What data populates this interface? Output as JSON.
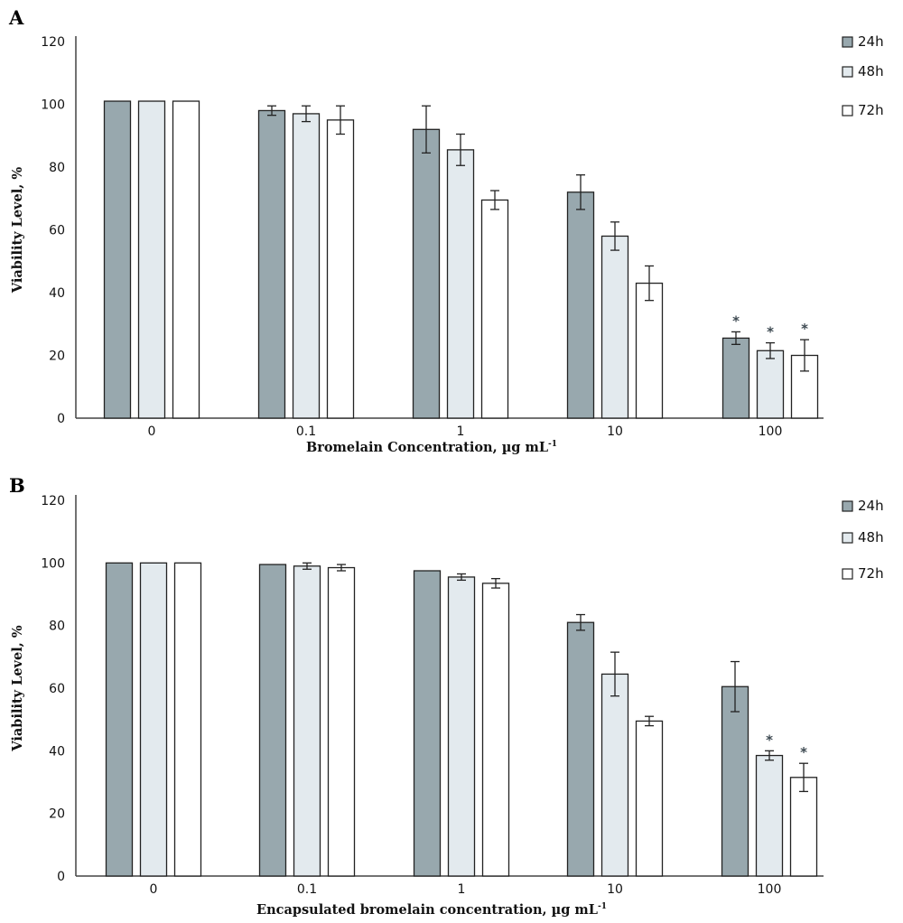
{
  "series_colors": [
    "#98a8ae",
    "#e3eaee",
    "#ffffff"
  ],
  "chart_data": [
    {
      "panel": "A",
      "type": "bar",
      "categories": [
        "0",
        "0.1",
        "1",
        "10",
        "100"
      ],
      "series": [
        {
          "name": "24h",
          "values": [
            101,
            98,
            92,
            72,
            25.5
          ],
          "errors": [
            0,
            1.5,
            7.5,
            5.5,
            2
          ]
        },
        {
          "name": "48h",
          "values": [
            101,
            97,
            85.5,
            58,
            21.5
          ],
          "errors": [
            0,
            2.5,
            5,
            4.5,
            2.5
          ]
        },
        {
          "name": "72h",
          "values": [
            101,
            95,
            69.5,
            43,
            20
          ],
          "errors": [
            0,
            4.5,
            3,
            5.5,
            5
          ]
        }
      ],
      "significant": [
        [
          0,
          0,
          0,
          0,
          1
        ],
        [
          0,
          0,
          0,
          0,
          1
        ],
        [
          0,
          0,
          0,
          0,
          1
        ]
      ],
      "significance_mark": "*",
      "xlabel": "Bromelain Concentration, µg mL",
      "xlabel_sup": "-1",
      "ylabel": "Viability Level, %",
      "ylim": [
        0,
        120
      ],
      "yticks": [
        0,
        20,
        40,
        60,
        80,
        100,
        120
      ],
      "grid": false,
      "legend_position": "top-right"
    },
    {
      "panel": "B",
      "type": "bar",
      "categories": [
        "0",
        "0.1",
        "1",
        "10",
        "100"
      ],
      "series": [
        {
          "name": "24h",
          "values": [
            100,
            99.5,
            97.5,
            81,
            60.5
          ],
          "errors": [
            0,
            0,
            0,
            2.5,
            8
          ]
        },
        {
          "name": "48h",
          "values": [
            100,
            99,
            95.5,
            64.5,
            38.5
          ],
          "errors": [
            0,
            1,
            1,
            7,
            1.5
          ]
        },
        {
          "name": "72h",
          "values": [
            100,
            98.5,
            93.5,
            49.5,
            31.5
          ],
          "errors": [
            0,
            1,
            1.5,
            1.5,
            4.5
          ]
        }
      ],
      "significant": [
        [
          0,
          0,
          0,
          0,
          0
        ],
        [
          0,
          0,
          0,
          0,
          1
        ],
        [
          0,
          0,
          0,
          0,
          1
        ]
      ],
      "significance_mark": "*",
      "xlabel": "Encapsulated bromelain concentration, µg mL",
      "xlabel_sup": "-1",
      "ylabel": "Viability Level, %",
      "ylim": [
        0,
        120
      ],
      "yticks": [
        0,
        20,
        40,
        60,
        80,
        100,
        120
      ],
      "grid": false,
      "legend_position": "top-right"
    }
  ]
}
